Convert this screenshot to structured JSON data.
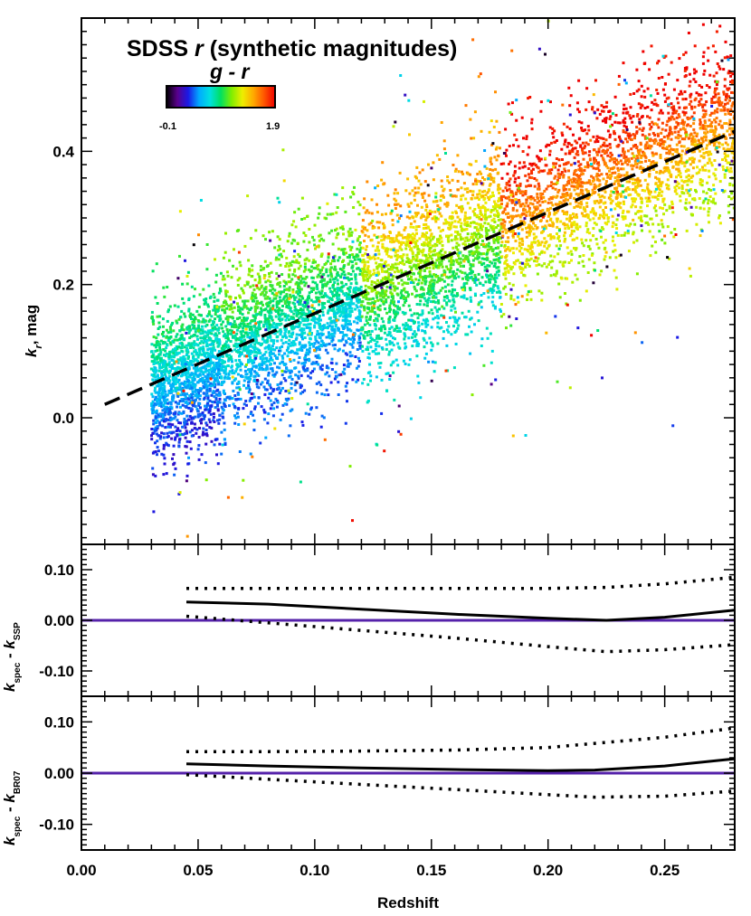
{
  "chart_data": [
    {
      "type": "scatter",
      "title": "SDSS r (synthetic magnitudes)",
      "title_parts": {
        "pre": "SDSS ",
        "italic": "r",
        "post": " (synthetic magnitudes)"
      },
      "xlabel": "",
      "ylabel": "k_r, mag",
      "ylabel_parts": {
        "main": "k",
        "sub": "r",
        "post": ", mag"
      },
      "xlim": [
        0.0,
        0.28
      ],
      "ylim": [
        -0.19,
        0.6
      ],
      "yticks": [
        0.0,
        0.2,
        0.4
      ],
      "yticklabels": [
        "0.0",
        "0.2",
        "0.4"
      ],
      "colorbar": {
        "label": "g - r",
        "min": -0.1,
        "max": 1.9,
        "min_label": "-0.1",
        "max_label": "1.9",
        "colors": [
          "#000000",
          "#5a008c",
          "#1a1ae6",
          "#00aaff",
          "#00e0e0",
          "#00e060",
          "#80ee00",
          "#eeee00",
          "#ffaa00",
          "#ff5500",
          "#ee0000"
        ]
      },
      "fit_line": {
        "style": "dashed",
        "color": "#000000",
        "x": [
          0.01,
          0.28
        ],
        "y": [
          0.02,
          0.43
        ]
      },
      "scatter_density": [
        {
          "x_range": [
            0.03,
            0.06
          ],
          "y_center_offset": -0.01,
          "spread": 0.055,
          "g_r_range": [
            0.3,
            0.9
          ]
        },
        {
          "x_range": [
            0.06,
            0.12
          ],
          "y_center_offset": 0.0,
          "spread": 0.06,
          "g_r_range": [
            0.4,
            1.1
          ]
        },
        {
          "x_range": [
            0.12,
            0.18
          ],
          "y_center_offset": 0.0,
          "spread": 0.065,
          "g_r_range": [
            0.7,
            1.5
          ]
        },
        {
          "x_range": [
            0.18,
            0.28
          ],
          "y_center_offset": 0.01,
          "spread": 0.06,
          "g_r_range": [
            1.2,
            1.9
          ]
        }
      ]
    },
    {
      "type": "line",
      "ylabel": "k_spec - k_SSP",
      "ylabel_parts": {
        "a": "k",
        "a_sub": "spec",
        "mid": " - ",
        "b": "k",
        "b_sub": "SSP"
      },
      "xlim": [
        0.0,
        0.28
      ],
      "ylim": [
        -0.15,
        0.15
      ],
      "yticks": [
        -0.1,
        0.0,
        0.1
      ],
      "yticklabels": [
        "-0.10",
        "0.00",
        "0.10"
      ],
      "zero_line_color": "#5522aa",
      "series": [
        {
          "style": "solid",
          "x": [
            0.045,
            0.08,
            0.12,
            0.16,
            0.2,
            0.225,
            0.25,
            0.28
          ],
          "values": [
            0.036,
            0.032,
            0.022,
            0.012,
            0.004,
            0.0,
            0.006,
            0.02
          ]
        },
        {
          "style": "dotted",
          "x": [
            0.045,
            0.08,
            0.12,
            0.16,
            0.2,
            0.225,
            0.25,
            0.28
          ],
          "values": [
            0.063,
            0.063,
            0.063,
            0.063,
            0.063,
            0.065,
            0.072,
            0.085
          ]
        },
        {
          "style": "dotted",
          "x": [
            0.045,
            0.08,
            0.12,
            0.16,
            0.2,
            0.225,
            0.25,
            0.28
          ],
          "values": [
            0.008,
            -0.005,
            -0.02,
            -0.035,
            -0.052,
            -0.062,
            -0.058,
            -0.048
          ]
        }
      ]
    },
    {
      "type": "line",
      "xlabel": "Redshift",
      "ylabel": "k_spec - k_BR07",
      "ylabel_parts": {
        "a": "k",
        "a_sub": "spec",
        "mid": " - ",
        "b": "k",
        "b_sub": "BR07"
      },
      "xlim": [
        0.0,
        0.28
      ],
      "ylim": [
        -0.15,
        0.15
      ],
      "yticks": [
        -0.1,
        0.0,
        0.1
      ],
      "yticklabels": [
        "-0.10",
        "0.00",
        "0.10"
      ],
      "xticks": [
        0.0,
        0.05,
        0.1,
        0.15,
        0.2,
        0.25
      ],
      "xticklabels": [
        "0.00",
        "0.05",
        "0.10",
        "0.15",
        "0.20",
        "0.25"
      ],
      "zero_line_color": "#5522aa",
      "series": [
        {
          "style": "solid",
          "x": [
            0.045,
            0.08,
            0.12,
            0.16,
            0.2,
            0.22,
            0.25,
            0.28
          ],
          "values": [
            0.018,
            0.014,
            0.01,
            0.007,
            0.005,
            0.006,
            0.014,
            0.028
          ]
        },
        {
          "style": "dotted",
          "x": [
            0.045,
            0.08,
            0.12,
            0.16,
            0.2,
            0.22,
            0.25,
            0.28
          ],
          "values": [
            0.042,
            0.042,
            0.043,
            0.045,
            0.05,
            0.058,
            0.07,
            0.088
          ]
        },
        {
          "style": "dotted",
          "x": [
            0.045,
            0.08,
            0.12,
            0.16,
            0.2,
            0.22,
            0.25,
            0.28
          ],
          "values": [
            -0.003,
            -0.012,
            -0.022,
            -0.032,
            -0.042,
            -0.047,
            -0.045,
            -0.035
          ]
        }
      ]
    }
  ]
}
